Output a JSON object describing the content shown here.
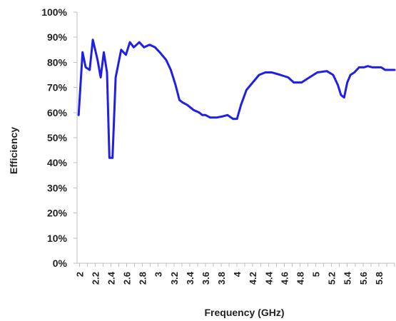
{
  "chart_data": {
    "type": "line",
    "title": "",
    "xlabel": "Frequency (GHz)",
    "ylabel": "Efficiency",
    "xlim": [
      1.97,
      6.0
    ],
    "ylim": [
      0,
      100
    ],
    "grid": false,
    "legend": "none",
    "x_ticks": [
      2,
      2.2,
      2.4,
      2.6,
      2.8,
      3,
      3.2,
      3.4,
      3.6,
      3.8,
      4,
      4.2,
      4.4,
      4.6,
      4.8,
      5,
      5.2,
      5.4,
      5.6,
      5.8
    ],
    "x_tick_labels": [
      "2",
      "2.2",
      "2.4",
      "2.6",
      "2.8",
      "3",
      "3.2",
      "3.4",
      "3.6",
      "3.8",
      "4",
      "4.2",
      "4.4",
      "4.6",
      "4.8",
      "5",
      "5.2",
      "5.4",
      "5.6",
      "5.8"
    ],
    "y_ticks": [
      0,
      10,
      20,
      30,
      40,
      50,
      60,
      70,
      80,
      90,
      100
    ],
    "y_tick_labels": [
      "0%",
      "10%",
      "20%",
      "30%",
      "40%",
      "50%",
      "60%",
      "70%",
      "80%",
      "90%",
      "100%"
    ],
    "series": [
      {
        "color": "#1f1fe6",
        "x": [
          1.99,
          2.04,
          2.08,
          2.13,
          2.17,
          2.23,
          2.27,
          2.31,
          2.35,
          2.38,
          2.42,
          2.46,
          2.53,
          2.59,
          2.64,
          2.69,
          2.76,
          2.82,
          2.89,
          2.96,
          3.02,
          3.1,
          3.16,
          3.22,
          3.27,
          3.31,
          3.37,
          3.45,
          3.52,
          3.56,
          3.6,
          3.66,
          3.74,
          3.82,
          3.88,
          3.95,
          4.0,
          4.05,
          4.12,
          4.2,
          4.28,
          4.36,
          4.44,
          4.55,
          4.65,
          4.72,
          4.82,
          4.92,
          5.02,
          5.14,
          5.22,
          5.28,
          5.32,
          5.36,
          5.4,
          5.44,
          5.49,
          5.55,
          5.61,
          5.66,
          5.72,
          5.78,
          5.83,
          5.88,
          5.93,
          6.0
        ],
        "values": [
          59,
          84,
          78,
          77,
          89,
          81,
          74,
          84,
          76,
          42,
          42,
          74,
          85,
          83,
          88,
          86,
          88,
          86,
          87,
          86,
          84,
          81,
          77,
          71,
          65,
          64,
          63,
          61,
          60,
          59,
          59,
          58,
          58,
          58.5,
          59,
          57.5,
          57.5,
          63,
          69,
          72,
          75,
          76,
          76,
          75,
          74,
          72,
          72,
          74,
          76,
          76.5,
          75,
          71,
          67,
          66,
          72,
          75,
          76,
          78,
          78,
          78.5,
          78,
          78,
          78,
          77,
          77,
          77
        ]
      }
    ]
  }
}
